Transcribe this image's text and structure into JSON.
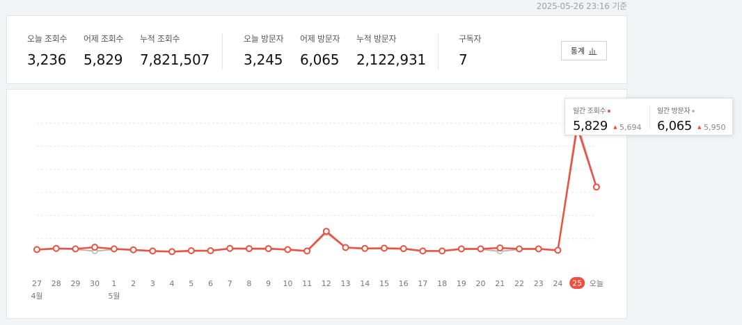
{
  "timestamp": "2025-05-26 23:16 기준",
  "stats": [
    {
      "label": "오늘 조회수",
      "value": "3,236"
    },
    {
      "label": "어제 조회수",
      "value": "5,829"
    },
    {
      "label": "누적 조회수",
      "value": "7,821,507"
    },
    {
      "label": "오늘 방문자",
      "value": "3,245"
    },
    {
      "label": "어제 방문자",
      "value": "6,065"
    },
    {
      "label": "누적 방문자",
      "value": "2,122,931"
    },
    {
      "label": "구독자",
      "value": "7"
    }
  ],
  "stats_button": {
    "label": "통계",
    "icon": "bar-chart-icon"
  },
  "tooltip": {
    "views_label": "일간 조회수",
    "views_value": "5,829",
    "views_prev": "5,694",
    "visitors_label": "일간 방문자",
    "visitors_value": "6,065",
    "visitors_prev": "5,950",
    "up_icon": "triangle-up-icon"
  },
  "colors": {
    "views": "#ee4f3e",
    "visitors": "#b8b8b8",
    "highlight": "#ee4f3e"
  },
  "chart_data": {
    "type": "line",
    "x": [
      "27",
      "28",
      "29",
      "30",
      "1",
      "2",
      "3",
      "4",
      "5",
      "6",
      "7",
      "8",
      "9",
      "10",
      "11",
      "12",
      "13",
      "14",
      "15",
      "16",
      "17",
      "18",
      "19",
      "20",
      "21",
      "22",
      "23",
      "24",
      "25",
      "오늘"
    ],
    "month_labels": [
      {
        "index": 0,
        "text": "4월"
      },
      {
        "index": 4,
        "text": "5월"
      }
    ],
    "highlight_index": 28,
    "series": [
      {
        "name": "일간 조회수",
        "values": [
          530,
          580,
          560,
          630,
          560,
          520,
          470,
          440,
          480,
          480,
          580,
          570,
          570,
          530,
          470,
          1320,
          620,
          580,
          590,
          570,
          470,
          470,
          560,
          560,
          600,
          560,
          560,
          500,
          5829,
          3236
        ]
      },
      {
        "name": "일간 방문자",
        "values": [
          510,
          560,
          540,
          460,
          540,
          500,
          460,
          430,
          460,
          470,
          560,
          550,
          550,
          510,
          460,
          1250,
          600,
          560,
          570,
          550,
          460,
          460,
          540,
          540,
          450,
          540,
          540,
          490,
          6065,
          3245
        ]
      }
    ],
    "ylim": [
      0,
      7000
    ],
    "grid": true
  }
}
